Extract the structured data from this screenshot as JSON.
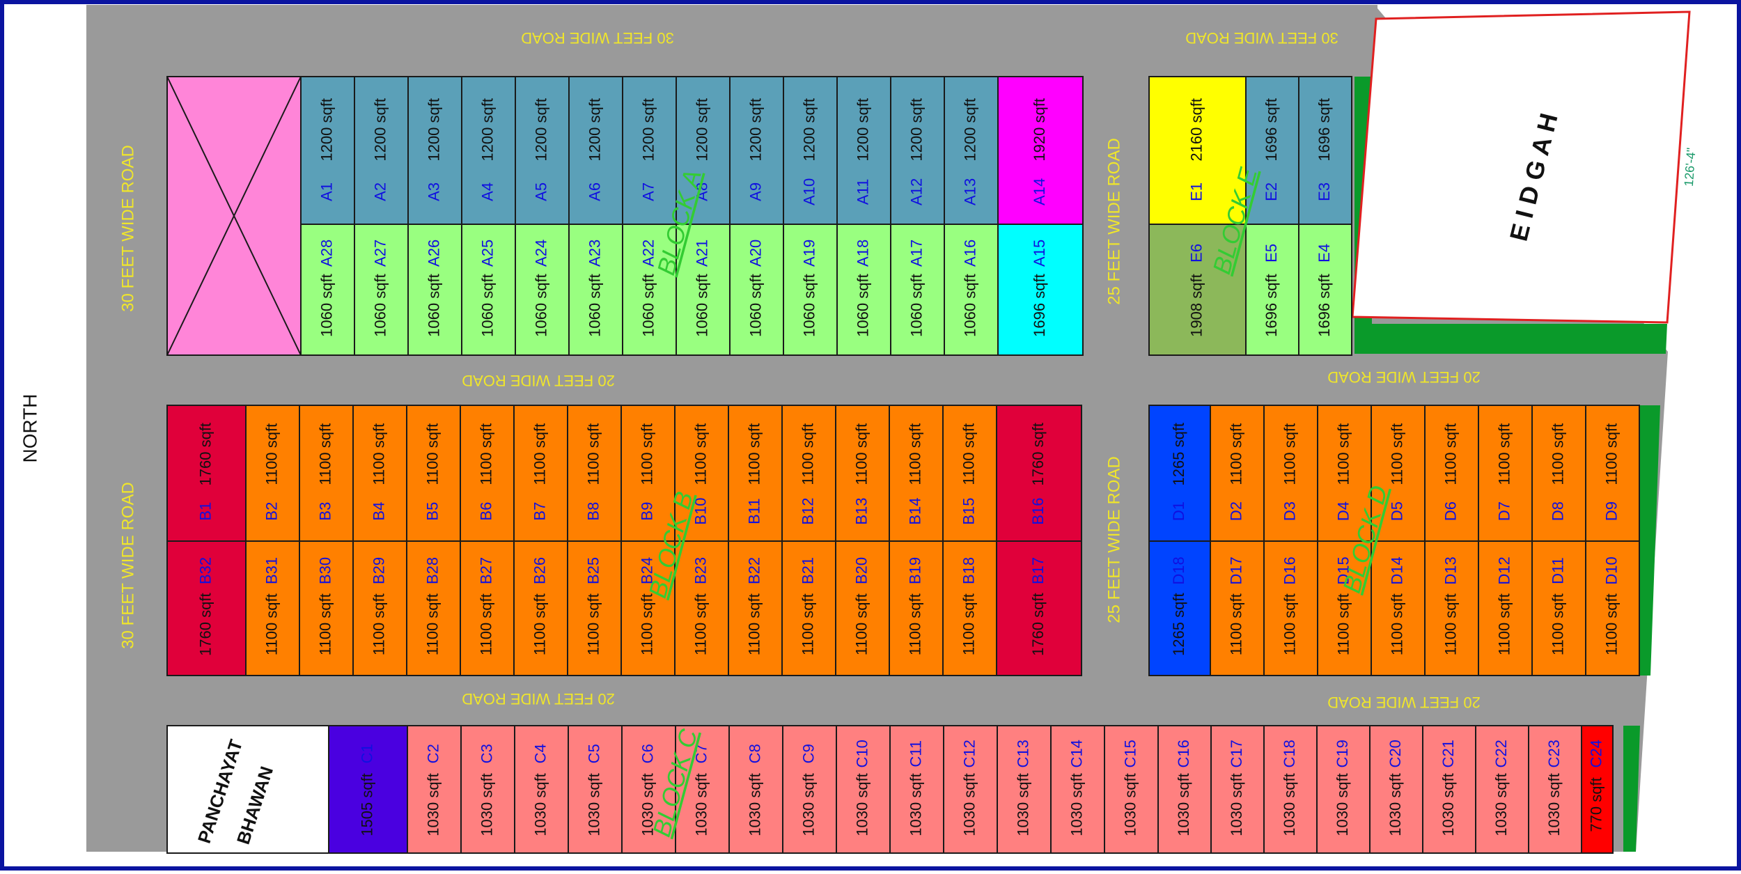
{
  "compass": "NORTH",
  "roads": {
    "top_left": "30 FEET WIDE ROAD",
    "top_right": "30 FEET WIDE ROAD",
    "left_upper": "30 FEET WIDE ROAD",
    "left_lower": "30 FEET WIDE ROAD",
    "mid_upper": "25 FEET WIDE ROAD",
    "mid_lower": "25 FEET WIDE ROAD",
    "between_ab": "20 FEET WIDE ROAD",
    "between_ed": "20 FEET WIDE ROAD",
    "between_bc": "20 FEET WIDE ROAD",
    "between_dc": "20 FEET WIDE ROAD"
  },
  "blocks": {
    "a": "BLOCK A",
    "b": "BLOCK B",
    "c": "BLOCK C",
    "d": "BLOCK D",
    "e": "BLOCK E"
  },
  "landmarks": {
    "eidgah": "E I D G A H",
    "eidgah_dimension": "126'-4\"",
    "panchayat_line1": "PANCHAYAT",
    "panchayat_line2": "BHAWAN"
  },
  "block_a": {
    "top": [
      {
        "id": "A1",
        "area": "1200 sqft"
      },
      {
        "id": "A2",
        "area": "1200 sqft"
      },
      {
        "id": "A3",
        "area": "1200 sqft"
      },
      {
        "id": "A4",
        "area": "1200 sqft"
      },
      {
        "id": "A5",
        "area": "1200 sqft"
      },
      {
        "id": "A6",
        "area": "1200 sqft"
      },
      {
        "id": "A7",
        "area": "1200 sqft"
      },
      {
        "id": "A8",
        "area": "1200 sqft"
      },
      {
        "id": "A9",
        "area": "1200 sqft"
      },
      {
        "id": "A10",
        "area": "1200 sqft"
      },
      {
        "id": "A11",
        "area": "1200 sqft"
      },
      {
        "id": "A12",
        "area": "1200 sqft"
      },
      {
        "id": "A13",
        "area": "1200 sqft"
      },
      {
        "id": "A14",
        "area": "1920 sqft"
      }
    ],
    "bottom": [
      {
        "id": "A28",
        "area": "1060 sqft"
      },
      {
        "id": "A27",
        "area": "1060 sqft"
      },
      {
        "id": "A26",
        "area": "1060 sqft"
      },
      {
        "id": "A25",
        "area": "1060 sqft"
      },
      {
        "id": "A24",
        "area": "1060 sqft"
      },
      {
        "id": "A23",
        "area": "1060 sqft"
      },
      {
        "id": "A22",
        "area": "1060 sqft"
      },
      {
        "id": "A21",
        "area": "1060 sqft"
      },
      {
        "id": "A20",
        "area": "1060 sqft"
      },
      {
        "id": "A19",
        "area": "1060 sqft"
      },
      {
        "id": "A18",
        "area": "1060 sqft"
      },
      {
        "id": "A17",
        "area": "1060 sqft"
      },
      {
        "id": "A16",
        "area": "1060 sqft"
      },
      {
        "id": "A15",
        "area": "1696 sqft"
      }
    ]
  },
  "block_e": {
    "top": [
      {
        "id": "E1",
        "area": "2160 sqft"
      },
      {
        "id": "E2",
        "area": "1696 sqft"
      },
      {
        "id": "E3",
        "area": "1696 sqft"
      }
    ],
    "bottom": [
      {
        "id": "E6",
        "area": "1908 sqft"
      },
      {
        "id": "E5",
        "area": "1696 sqft"
      },
      {
        "id": "E4",
        "area": "1696 sqft"
      }
    ]
  },
  "block_b": {
    "top": [
      {
        "id": "B1",
        "area": "1760 sqft"
      },
      {
        "id": "B2",
        "area": "1100 sqft"
      },
      {
        "id": "B3",
        "area": "1100 sqft"
      },
      {
        "id": "B4",
        "area": "1100 sqft"
      },
      {
        "id": "B5",
        "area": "1100 sqft"
      },
      {
        "id": "B6",
        "area": "1100 sqft"
      },
      {
        "id": "B7",
        "area": "1100 sqft"
      },
      {
        "id": "B8",
        "area": "1100 sqft"
      },
      {
        "id": "B9",
        "area": "1100 sqft"
      },
      {
        "id": "B10",
        "area": "1100 sqft"
      },
      {
        "id": "B11",
        "area": "1100 sqft"
      },
      {
        "id": "B12",
        "area": "1100 sqft"
      },
      {
        "id": "B13",
        "area": "1100 sqft"
      },
      {
        "id": "B14",
        "area": "1100 sqft"
      },
      {
        "id": "B15",
        "area": "1100 sqft"
      },
      {
        "id": "B16",
        "area": "1760 sqft"
      }
    ],
    "bottom": [
      {
        "id": "B32",
        "area": "1760 sqft"
      },
      {
        "id": "B31",
        "area": "1100 sqft"
      },
      {
        "id": "B30",
        "area": "1100 sqft"
      },
      {
        "id": "B29",
        "area": "1100 sqft"
      },
      {
        "id": "B28",
        "area": "1100 sqft"
      },
      {
        "id": "B27",
        "area": "1100 sqft"
      },
      {
        "id": "B26",
        "area": "1100 sqft"
      },
      {
        "id": "B25",
        "area": "1100 sqft"
      },
      {
        "id": "B24",
        "area": "1100 sqft"
      },
      {
        "id": "B23",
        "area": "1100 sqft"
      },
      {
        "id": "B22",
        "area": "1100 sqft"
      },
      {
        "id": "B21",
        "area": "1100 sqft"
      },
      {
        "id": "B20",
        "area": "1100 sqft"
      },
      {
        "id": "B19",
        "area": "1100 sqft"
      },
      {
        "id": "B18",
        "area": "1100 sqft"
      },
      {
        "id": "B17",
        "area": "1760 sqft"
      }
    ]
  },
  "block_d": {
    "top": [
      {
        "id": "D1",
        "area": "1265 sqft"
      },
      {
        "id": "D2",
        "area": "1100 sqft"
      },
      {
        "id": "D3",
        "area": "1100 sqft"
      },
      {
        "id": "D4",
        "area": "1100 sqft"
      },
      {
        "id": "D5",
        "area": "1100 sqft"
      },
      {
        "id": "D6",
        "area": "1100 sqft"
      },
      {
        "id": "D7",
        "area": "1100 sqft"
      },
      {
        "id": "D8",
        "area": "1100 sqft"
      },
      {
        "id": "D9",
        "area": "1100 sqft"
      }
    ],
    "bottom": [
      {
        "id": "D18",
        "area": "1265 sqft"
      },
      {
        "id": "D17",
        "area": "1100 sqft"
      },
      {
        "id": "D16",
        "area": "1100 sqft"
      },
      {
        "id": "D15",
        "area": "1100 sqft"
      },
      {
        "id": "D14",
        "area": "1100 sqft"
      },
      {
        "id": "D13",
        "area": "1100 sqft"
      },
      {
        "id": "D12",
        "area": "1100 sqft"
      },
      {
        "id": "D11",
        "area": "1100 sqft"
      },
      {
        "id": "D10",
        "area": "1100 sqft"
      }
    ]
  },
  "block_c": [
    {
      "id": "C1",
      "area": "1505 sqft"
    },
    {
      "id": "C2",
      "area": "1030 sqft"
    },
    {
      "id": "C3",
      "area": "1030 sqft"
    },
    {
      "id": "C4",
      "area": "1030 sqft"
    },
    {
      "id": "C5",
      "area": "1030 sqft"
    },
    {
      "id": "C6",
      "area": "1030 sqft"
    },
    {
      "id": "C7",
      "area": "1030 sqft"
    },
    {
      "id": "C8",
      "area": "1030 sqft"
    },
    {
      "id": "C9",
      "area": "1030 sqft"
    },
    {
      "id": "C10",
      "area": "1030 sqft"
    },
    {
      "id": "C11",
      "area": "1030 sqft"
    },
    {
      "id": "C12",
      "area": "1030 sqft"
    },
    {
      "id": "C13",
      "area": "1030 sqft"
    },
    {
      "id": "C14",
      "area": "1030 sqft"
    },
    {
      "id": "C15",
      "area": "1030 sqft"
    },
    {
      "id": "C16",
      "area": "1030 sqft"
    },
    {
      "id": "C17",
      "area": "1030 sqft"
    },
    {
      "id": "C18",
      "area": "1030 sqft"
    },
    {
      "id": "C19",
      "area": "1030 sqft"
    },
    {
      "id": "C20",
      "area": "1030 sqft"
    },
    {
      "id": "C21",
      "area": "1030 sqft"
    },
    {
      "id": "C22",
      "area": "1030 sqft"
    },
    {
      "id": "C23",
      "area": "1030 sqft"
    },
    {
      "id": "C24",
      "area": "770 sqft"
    }
  ],
  "colors": {
    "border": "#0a14a0",
    "road": "#9a9a9a",
    "road_text": "#f0e62a",
    "plot_outline": "#1a1a1a",
    "park": "#ff85d8",
    "block_a_top": "#5ba0b8",
    "block_a_bottom": "#99ff80",
    "a14": "#ff00ff",
    "a15": "#00ffff",
    "e1": "#ffff00",
    "e6": "#8cb85a",
    "block_b": "#ff8000",
    "b_corner": "#e0003a",
    "d_corner": "#0044ff",
    "block_c": "#ff8080",
    "c1": "#4a00e0",
    "c24": "#ff0000",
    "eidgah_outline": "#e02020",
    "green_strip": "#0a9a2a",
    "id_text": "#1010e0",
    "block_label": "#33cc33",
    "dimension_text": "#1a9a6a"
  }
}
